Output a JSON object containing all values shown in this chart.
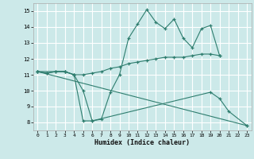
{
  "xlabel": "Humidex (Indice chaleur)",
  "background_color": "#cce9e9",
  "grid_color": "#ffffff",
  "line_color": "#2e7d6e",
  "xlim": [
    -0.5,
    23.5
  ],
  "ylim": [
    7.5,
    15.5
  ],
  "xticks": [
    0,
    1,
    2,
    3,
    4,
    5,
    6,
    7,
    8,
    9,
    10,
    11,
    12,
    13,
    14,
    15,
    16,
    17,
    18,
    19,
    20,
    21,
    22,
    23
  ],
  "yticks": [
    8,
    9,
    10,
    11,
    12,
    13,
    14,
    15
  ],
  "series": [
    {
      "x": [
        0,
        1,
        2,
        3,
        4,
        5,
        6,
        7,
        8,
        9,
        10,
        11,
        12,
        13,
        14,
        15,
        16,
        17,
        18,
        19,
        20
      ],
      "y": [
        11.2,
        11.1,
        11.2,
        11.2,
        11.0,
        10.0,
        8.1,
        8.2,
        9.9,
        11.0,
        13.3,
        14.2,
        15.1,
        14.3,
        13.9,
        14.5,
        13.3,
        12.7,
        13.9,
        14.1,
        12.2
      ]
    },
    {
      "x": [
        0,
        1,
        2,
        3,
        4,
        5,
        6,
        7,
        8,
        9,
        10,
        11,
        12,
        13,
        14,
        15,
        16,
        17,
        18,
        19,
        20
      ],
      "y": [
        11.2,
        11.1,
        11.2,
        11.2,
        11.0,
        11.0,
        11.1,
        11.2,
        11.4,
        11.5,
        11.7,
        11.8,
        11.9,
        12.0,
        12.1,
        12.1,
        12.1,
        12.2,
        12.3,
        12.3,
        12.2
      ]
    },
    {
      "x": [
        0,
        23
      ],
      "y": [
        11.2,
        7.8
      ]
    },
    {
      "x": [
        0,
        3,
        4,
        5,
        6,
        19,
        20,
        21,
        23
      ],
      "y": [
        11.2,
        11.2,
        11.0,
        8.1,
        8.1,
        9.9,
        9.5,
        8.7,
        7.8
      ]
    }
  ]
}
